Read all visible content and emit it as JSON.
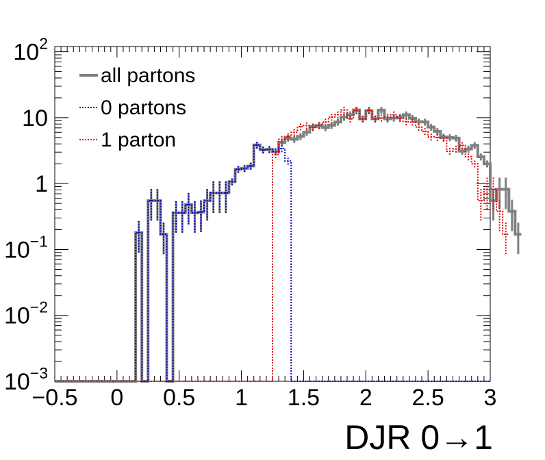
{
  "chart_data": {
    "type": "step-histogram",
    "xlabel": "DJR 0→1",
    "ylabel": "",
    "xlim": [
      -0.5,
      3.0
    ],
    "ylim": [
      0.001,
      120
    ],
    "yscale": "log",
    "bin_width": 0.05,
    "x_ticks": [
      {
        "value": -0.5,
        "label": "−0.5"
      },
      {
        "value": 0,
        "label": "0"
      },
      {
        "value": 0.5,
        "label": "0.5"
      },
      {
        "value": 1,
        "label": "1"
      },
      {
        "value": 1.5,
        "label": "1.5"
      },
      {
        "value": 2,
        "label": "2"
      },
      {
        "value": 2.5,
        "label": "2.5"
      },
      {
        "value": 3,
        "label": "3"
      }
    ],
    "y_ticks": [
      {
        "value": 0.001,
        "base": "10",
        "exp": "−3"
      },
      {
        "value": 0.01,
        "base": "10",
        "exp": "−2"
      },
      {
        "value": 0.1,
        "base": "10",
        "exp": "−1"
      },
      {
        "value": 1,
        "base": "1",
        "exp": ""
      },
      {
        "value": 10,
        "base": "10",
        "exp": ""
      },
      {
        "value": 100,
        "base": "10",
        "exp": "2"
      }
    ],
    "legend": {
      "position": "top-left",
      "entries": [
        {
          "label": "all partons",
          "color": "#808080",
          "style": "solid"
        },
        {
          "label": "0 partons",
          "color": "#0000cc",
          "style": "dotted"
        },
        {
          "label": "1 parton",
          "color": "#dd0000",
          "style": "dotted"
        }
      ]
    },
    "series": [
      {
        "name": "0 partons",
        "color": "#0000cc",
        "style": "dotted",
        "x_start": 0.15,
        "values": [
          0.18,
          0.001,
          0.55,
          0.55,
          0.17,
          0.001,
          0.36,
          0.36,
          0.48,
          0.36,
          0.37,
          0.55,
          0.72,
          0.72,
          0.72,
          1.07,
          1.65,
          1.7,
          1.85,
          3.85,
          3.25,
          3.3,
          3.05,
          3.4,
          2.2
        ]
      },
      {
        "name": "1 parton",
        "color": "#dd0000",
        "style": "dotted",
        "x_start": 1.25,
        "values": [
          2.75,
          4.7,
          5.2,
          6.0,
          7.3,
          7.6,
          7.1,
          7.7,
          8.6,
          10.2,
          11.1,
          13.1,
          9.6,
          12.8,
          9.6,
          13.0,
          9.6,
          9.9,
          10.2,
          11.1,
          9.8,
          8.7,
          8.6,
          7.2,
          6.2,
          5.1,
          5.0,
          4.9,
          3.1,
          3.35,
          3.8,
          2.55,
          2.0,
          0.55,
          0.82,
          0.82,
          0.38,
          0.17
        ]
      },
      {
        "name": "all partons",
        "color": "#808080",
        "style": "solid",
        "x_start": 0.15,
        "values": [
          0.18,
          0.001,
          0.55,
          0.55,
          0.17,
          0.001,
          0.36,
          0.36,
          0.48,
          0.36,
          0.37,
          0.55,
          0.72,
          0.72,
          0.72,
          1.07,
          1.65,
          1.7,
          1.85,
          3.85,
          3.25,
          3.3,
          3.05,
          4.2,
          4.9,
          4.7,
          5.2,
          6.0,
          7.3,
          7.6,
          7.1,
          7.7,
          8.6,
          10.2,
          11.1,
          13.1,
          9.6,
          12.8,
          9.6,
          13.0,
          9.6,
          9.9,
          10.2,
          11.1,
          9.8,
          8.7,
          8.6,
          7.2,
          6.2,
          5.1,
          5.0,
          4.9,
          3.1,
          3.35,
          3.8,
          2.55,
          2.0,
          0.55,
          0.82,
          0.82,
          0.38,
          0.17
        ]
      }
    ]
  }
}
